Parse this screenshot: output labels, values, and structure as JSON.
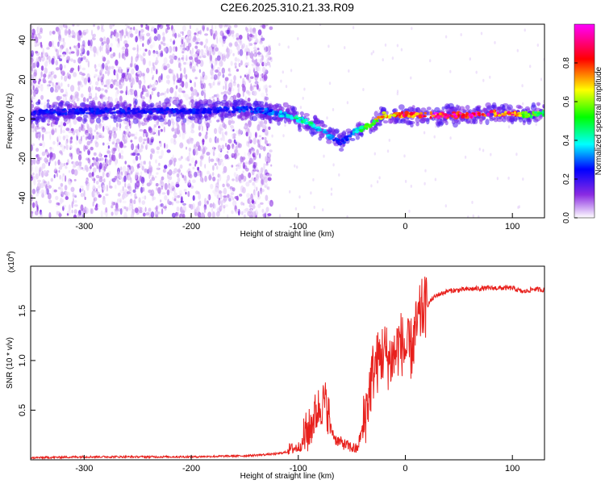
{
  "chart_data": [
    {
      "type": "heatmap",
      "title": "C2E6.2025.310.21.33.R09",
      "xlabel": "Height of straight line (km)",
      "ylabel": "Frequency (Hz)",
      "xlim": [
        -350,
        130
      ],
      "ylim": [
        -50,
        48
      ],
      "xticks": [
        -300,
        -200,
        -100,
        0,
        100
      ],
      "yticks": [
        -40,
        -20,
        0,
        20,
        40
      ],
      "ridge": {
        "x": [
          -350,
          -300,
          -250,
          -200,
          -150,
          -130,
          -110,
          -100,
          -90,
          -80,
          -70,
          -60,
          -55,
          -50,
          -40,
          -30,
          -25,
          -20,
          -10,
          0,
          10,
          30,
          60,
          80,
          100,
          110,
          130
        ],
        "frequency": [
          3,
          4,
          4,
          4,
          5,
          4,
          2,
          0,
          -2,
          -5,
          -9,
          -12,
          -10,
          -7,
          -5,
          -2,
          0,
          2,
          2,
          2,
          2,
          2,
          2,
          3,
          3,
          2,
          3
        ],
        "amplitude": [
          0.25,
          0.25,
          0.25,
          0.25,
          0.28,
          0.3,
          0.4,
          0.45,
          0.45,
          0.4,
          0.35,
          0.25,
          0.3,
          0.35,
          0.5,
          0.6,
          0.7,
          0.75,
          0.8,
          0.85,
          0.9,
          0.95,
          0.95,
          0.9,
          0.85,
          0.6,
          0.55
        ]
      },
      "colorbar": {
        "label": "Normalized spectral amplitude",
        "range": [
          0,
          1
        ],
        "ticks": [
          "0.0",
          "0.2",
          "0.4",
          "0.6",
          "0.8"
        ],
        "colormap": [
          "#ffffff",
          "#8a2be2",
          "#0000ff",
          "#00ffff",
          "#00ff00",
          "#ffff00",
          "#ff0000",
          "#ff00ff"
        ]
      }
    },
    {
      "type": "line",
      "xlabel": "Height of straight line (km)",
      "ylabel": "SNR (10 * v/v)",
      "y_multiplier": "(x10",
      "y_multiplier_exp": "4",
      "y_multiplier_close": ")",
      "xlim": [
        -350,
        130
      ],
      "ylim": [
        0,
        1.95
      ],
      "xticks": [
        -300,
        -200,
        -100,
        0,
        100
      ],
      "yticks": [
        0.5,
        1.0,
        1.5
      ],
      "yticklabels": [
        "0.5",
        "1.0",
        "1.5"
      ],
      "series": [
        {
          "name": "SNR",
          "color": "#e8201c",
          "x": [
            -350,
            -300,
            -250,
            -200,
            -150,
            -120,
            -100,
            -95,
            -90,
            -85,
            -80,
            -75,
            -70,
            -65,
            -60,
            -55,
            -50,
            -45,
            -40,
            -35,
            -30,
            -25,
            -20,
            -15,
            -10,
            -5,
            0,
            5,
            10,
            15,
            20,
            25,
            30,
            40,
            60,
            80,
            100,
            110,
            120,
            130
          ],
          "y": [
            0.02,
            0.03,
            0.03,
            0.03,
            0.04,
            0.06,
            0.1,
            0.15,
            0.2,
            0.35,
            0.45,
            0.5,
            0.3,
            0.18,
            0.15,
            0.12,
            0.1,
            0.08,
            0.3,
            0.6,
            0.9,
            1.0,
            1.1,
            1.0,
            1.05,
            1.2,
            1.1,
            1.1,
            1.3,
            1.5,
            1.55,
            1.62,
            1.66,
            1.7,
            1.72,
            1.73,
            1.73,
            1.69,
            1.72,
            1.71
          ]
        }
      ]
    }
  ],
  "colors": {
    "line": "#e8201c",
    "axis": "#000000"
  }
}
